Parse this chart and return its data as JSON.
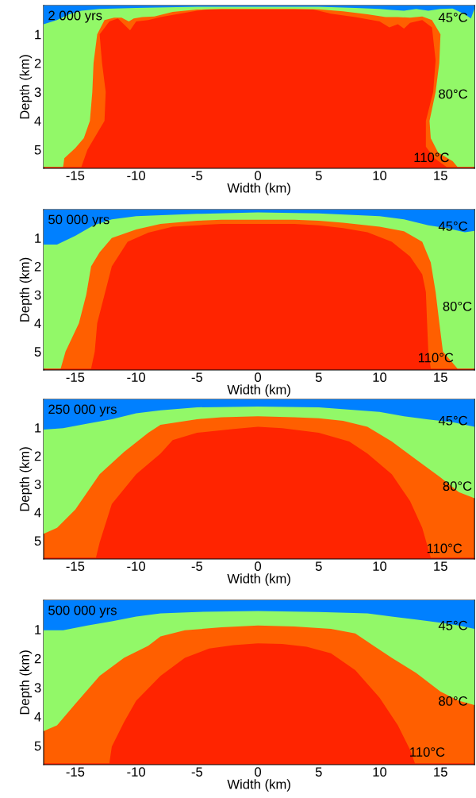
{
  "chart_data": [
    {
      "type": "area",
      "xlabel": "Width (km)",
      "ylabel": "Depth (km)",
      "xlim": [
        -17.6,
        17.8
      ],
      "ylim": [
        5.65,
        0
      ],
      "xticks": [
        -15,
        -10,
        -5,
        0,
        5,
        10,
        15
      ],
      "yticks": [
        1,
        2,
        3,
        4,
        5
      ],
      "annotations": [
        "2 000 yrs",
        "45°C",
        "80°C",
        "110°C"
      ],
      "bands": [
        {
          "axis": "y",
          "from": 0,
          "to": 5.65,
          "color": "#ff2400"
        }
      ],
      "series": [
        {
          "color": "#0080ff",
          "x": [
            -17.6,
            -16.5,
            -15.5,
            -14.5,
            -13,
            -10,
            -5,
            0,
            5,
            8,
            10,
            11,
            12,
            13,
            14,
            15,
            16,
            17,
            17.5,
            17.8
          ],
          "values": [
            0.65,
            0.5,
            0.3,
            0.18,
            0.12,
            0.08,
            0.04,
            0.04,
            0.04,
            0.08,
            0.12,
            0.15,
            0.18,
            0.12,
            0.18,
            0.12,
            0.1,
            0.3,
            0.45,
            0.1
          ]
        },
        {
          "color": "#92f868",
          "x": [
            -17.6,
            -16.0,
            -15.9,
            -15.0,
            -14.3,
            -13.8,
            -13.6,
            -13.5,
            -13.2,
            -12.6,
            -11.8,
            -11.2,
            -10.6,
            -10.2,
            -9.5,
            -8.5,
            -7,
            -5,
            -3,
            0,
            3,
            5,
            7,
            9,
            10.5,
            11.5,
            12.5,
            13.5,
            14.3,
            15.0,
            14.9,
            14.6,
            14.1,
            14.2,
            14.8,
            16.0,
            16.4,
            17.8
          ],
          "values": [
            5.6,
            5.6,
            5.3,
            4.95,
            4.6,
            4.0,
            3.0,
            2.0,
            1.0,
            0.5,
            0.42,
            0.42,
            0.55,
            0.45,
            0.4,
            0.38,
            0.22,
            0.14,
            0.12,
            0.12,
            0.12,
            0.13,
            0.2,
            0.3,
            0.4,
            0.4,
            0.42,
            0.38,
            0.5,
            1.0,
            2.0,
            3.0,
            4.0,
            4.6,
            5.1,
            5.4,
            5.6,
            5.6
          ]
        },
        {
          "color": "#ff5f00",
          "x": [
            -16.0,
            -14.5,
            -14.0,
            -12.6,
            -12.5,
            -12.8,
            -13.0,
            -12.2,
            -11.5,
            -10.5,
            -10,
            -9,
            -8,
            -5,
            -4,
            0,
            4.5,
            6,
            8,
            10,
            10.8,
            11.5,
            12,
            12.5,
            13.5,
            14.3,
            14.6,
            14.4,
            13.8,
            13.8,
            14.5,
            15.5,
            16.4
          ],
          "values": [
            5.6,
            5.6,
            5.0,
            4.0,
            3.0,
            2.0,
            1.0,
            0.55,
            0.45,
            0.86,
            0.55,
            0.5,
            0.4,
            0.18,
            0.13,
            0.13,
            0.13,
            0.28,
            0.4,
            0.55,
            0.76,
            0.65,
            0.8,
            0.6,
            0.5,
            0.76,
            1.9,
            3.0,
            4.0,
            4.9,
            5.3,
            5.6,
            5.6
          ]
        }
      ]
    },
    {
      "type": "area",
      "xlabel": "Width (km)",
      "ylabel": "Depth (km)",
      "xlim": [
        -17.6,
        17.8
      ],
      "ylim": [
        5.65,
        0
      ],
      "xticks": [
        -15,
        -10,
        -5,
        0,
        5,
        10,
        15
      ],
      "yticks": [
        1,
        2,
        3,
        4,
        5
      ],
      "annotations": [
        "50 000 yrs",
        "45°C",
        "80°C",
        "110°C"
      ],
      "bands": [
        {
          "axis": "y",
          "from": 0,
          "to": 5.65,
          "color": "#ff2400"
        }
      ],
      "series": [
        {
          "color": "#0080ff",
          "x": [
            -17.6,
            -16.5,
            -15,
            -13.5,
            -12,
            -10,
            -5,
            0,
            5,
            10,
            12,
            14,
            15.5,
            17,
            17.8
          ],
          "values": [
            1.23,
            1.23,
            0.92,
            0.55,
            0.34,
            0.23,
            0.15,
            0.1,
            0.13,
            0.23,
            0.34,
            0.55,
            0.65,
            0.8,
            0.75
          ]
        },
        {
          "color": "#92f868",
          "x": [
            -17.6,
            -16.2,
            -15.8,
            -14.7,
            -14.1,
            -13.7,
            -13.0,
            -12.0,
            -10,
            -8,
            -5,
            -3,
            0,
            3,
            5,
            7,
            10,
            12,
            13.5,
            14.2,
            14.6,
            14.9,
            15.2,
            16.4,
            17.8
          ],
          "values": [
            5.6,
            5.6,
            5.0,
            4.0,
            3.0,
            2.0,
            1.5,
            1.0,
            0.7,
            0.5,
            0.39,
            0.36,
            0.36,
            0.36,
            0.39,
            0.46,
            0.6,
            0.76,
            1.13,
            1.86,
            2.9,
            3.97,
            5.0,
            5.6,
            5.6
          ]
        },
        {
          "color": "#ff5f00",
          "x": [
            -16.2,
            -13.7,
            -13.4,
            -13.2,
            -12.6,
            -12.0,
            -10.7,
            -9,
            -7,
            -5,
            -3,
            0,
            3,
            5,
            7,
            9,
            11,
            12.5,
            13.5,
            13.8,
            13.9,
            14.0,
            14.2,
            16.4
          ],
          "values": [
            5.6,
            5.6,
            5.0,
            4.0,
            3.0,
            2.0,
            1.13,
            0.81,
            0.6,
            0.55,
            0.5,
            0.5,
            0.5,
            0.55,
            0.65,
            0.8,
            1.13,
            1.65,
            2.28,
            2.9,
            4.0,
            5.0,
            5.6,
            5.6
          ]
        }
      ]
    },
    {
      "type": "area",
      "xlabel": "Width (km)",
      "ylabel": "Depth (km)",
      "xlim": [
        -17.6,
        17.8
      ],
      "ylim": [
        5.65,
        0
      ],
      "xticks": [
        -15,
        -10,
        -5,
        0,
        5,
        10,
        15
      ],
      "yticks": [
        1,
        2,
        3,
        4,
        5
      ],
      "annotations": [
        "250 000 yrs",
        "45°C",
        "80°C",
        "110°C"
      ],
      "bands": [
        {
          "axis": "y",
          "from": 0,
          "to": 5.65,
          "color": "#ff2400"
        }
      ],
      "series": [
        {
          "color": "#0080ff",
          "x": [
            -17.6,
            -16,
            -14,
            -12,
            -10,
            -8,
            -5,
            0,
            5,
            10,
            12,
            14,
            16,
            17.8
          ],
          "values": [
            1.07,
            1.02,
            0.86,
            0.7,
            0.49,
            0.39,
            0.28,
            0.25,
            0.28,
            0.44,
            0.6,
            0.71,
            0.81,
            0.97
          ]
        },
        {
          "color": "#92f868",
          "x": [
            -17.6,
            -16.5,
            -15,
            -13,
            -11,
            -9,
            -8,
            -5,
            -3,
            0,
            3,
            5,
            7,
            9,
            11,
            13,
            15,
            16.5,
            17.8
          ],
          "values": [
            4.76,
            4.55,
            3.9,
            2.65,
            1.86,
            1.18,
            0.9,
            0.7,
            0.63,
            0.6,
            0.63,
            0.67,
            0.76,
            0.97,
            1.49,
            2.13,
            2.76,
            3.28,
            3.5
          ]
        },
        {
          "color": "#ff5f00",
          "x": [
            -17.6,
            -13.3,
            -13,
            -12,
            -10,
            -8,
            -7,
            -5,
            -2,
            0,
            2,
            5,
            7.5,
            9,
            11,
            12.5,
            13.5,
            14.2,
            17.8
          ],
          "values": [
            5.6,
            5.6,
            5.07,
            3.7,
            2.65,
            1.92,
            1.44,
            1.18,
            1.05,
            0.97,
            1.02,
            1.18,
            1.49,
            1.92,
            2.65,
            3.6,
            4.55,
            5.6,
            5.6
          ]
        }
      ]
    },
    {
      "type": "area",
      "xlabel": "Width (km)",
      "ylabel": "Depth (km)",
      "xlim": [
        -17.6,
        17.8
      ],
      "ylim": [
        5.65,
        0
      ],
      "xticks": [
        -15,
        -10,
        -5,
        0,
        5,
        10,
        15
      ],
      "yticks": [
        1,
        2,
        3,
        4,
        5
      ],
      "annotations": [
        "500 000 yrs",
        "45°C",
        "80°C",
        "110°C"
      ],
      "bands": [
        {
          "axis": "y",
          "from": 0,
          "to": 5.65,
          "color": "#ff2400"
        }
      ],
      "series": [
        {
          "color": "#0080ff",
          "x": [
            -17.6,
            -16,
            -14,
            -12,
            -10,
            -8,
            -5,
            0,
            5,
            9,
            11,
            13,
            15,
            16.5,
            17.8
          ],
          "values": [
            1.03,
            1.03,
            0.87,
            0.72,
            0.56,
            0.45,
            0.4,
            0.37,
            0.4,
            0.45,
            0.56,
            0.66,
            0.77,
            0.87,
            0.98
          ]
        },
        {
          "color": "#92f868",
          "x": [
            -17.6,
            -16.5,
            -15,
            -13,
            -11,
            -9,
            -8,
            -6,
            -3,
            0,
            3,
            6,
            8,
            9.5,
            11,
            13,
            15,
            16.5,
            17.8
          ],
          "values": [
            4.5,
            4.3,
            3.56,
            2.6,
            1.98,
            1.56,
            1.24,
            1.03,
            0.93,
            0.87,
            0.9,
            0.98,
            1.14,
            1.56,
            1.98,
            2.5,
            3.14,
            3.45,
            3.6
          ]
        },
        {
          "color": "#ff5f00",
          "x": [
            -17.6,
            -12.2,
            -12,
            -11,
            -10,
            -8,
            -6,
            -4,
            -2,
            0,
            2,
            4,
            6,
            8,
            10,
            11.5,
            12.5,
            12.9,
            17.8
          ],
          "values": [
            5.6,
            5.6,
            5.03,
            4.19,
            3.45,
            2.6,
            1.98,
            1.66,
            1.54,
            1.48,
            1.5,
            1.6,
            1.82,
            2.4,
            3.35,
            4.3,
            5.14,
            5.6,
            5.6
          ]
        }
      ]
    }
  ]
}
